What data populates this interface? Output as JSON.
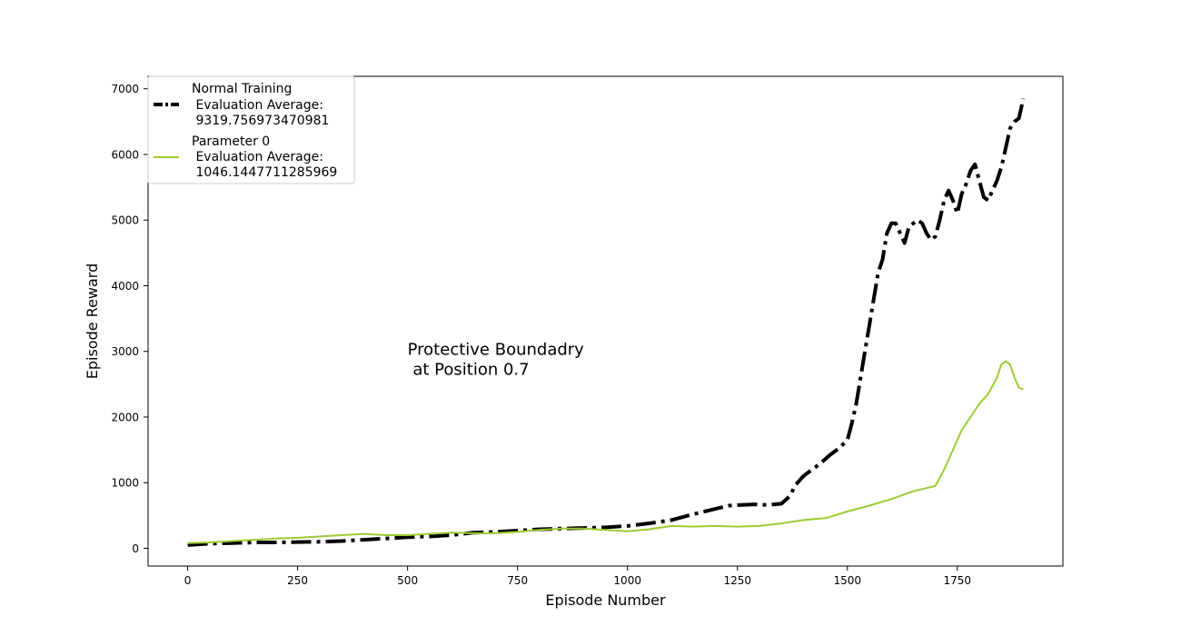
{
  "chart_data": {
    "type": "line",
    "xlabel": "Episode Number",
    "ylabel": "Episode Reward",
    "xlim": [
      -90,
      1990
    ],
    "ylim": [
      -270,
      7190
    ],
    "xticks": [
      0,
      250,
      500,
      750,
      1000,
      1250,
      1500,
      1750
    ],
    "yticks": [
      0,
      1000,
      2000,
      3000,
      4000,
      5000,
      6000,
      7000
    ],
    "grid": false,
    "legend_position": "top-left",
    "annotation": {
      "lines": [
        "Protective Boundadry",
        " at Position 0.7"
      ],
      "x": 500,
      "y": 2950
    },
    "series": [
      {
        "name": "Normal Training\n Evaluation Average:\n 9319.756973470981",
        "legend_lines": [
          "Normal Training",
          " Evaluation Average:",
          " 9319.756973470981"
        ],
        "color": "#000000",
        "style": "dashdot",
        "x": [
          0,
          50,
          100,
          150,
          200,
          250,
          300,
          350,
          400,
          450,
          500,
          550,
          600,
          650,
          700,
          750,
          800,
          850,
          900,
          950,
          1000,
          1050,
          1100,
          1150,
          1200,
          1230,
          1260,
          1290,
          1320,
          1350,
          1370,
          1380,
          1400,
          1420,
          1440,
          1460,
          1480,
          1500,
          1510,
          1520,
          1530,
          1540,
          1550,
          1560,
          1570,
          1580,
          1590,
          1600,
          1610,
          1620,
          1630,
          1640,
          1650,
          1660,
          1670,
          1680,
          1690,
          1700,
          1710,
          1720,
          1730,
          1740,
          1750,
          1760,
          1770,
          1780,
          1790,
          1800,
          1810,
          1820,
          1830,
          1840,
          1850,
          1860,
          1870,
          1880,
          1890,
          1900
        ],
        "y": [
          50,
          70,
          80,
          90,
          90,
          95,
          100,
          110,
          130,
          150,
          170,
          180,
          200,
          240,
          250,
          270,
          290,
          300,
          310,
          320,
          340,
          380,
          430,
          520,
          600,
          650,
          660,
          670,
          660,
          680,
          800,
          950,
          1100,
          1200,
          1300,
          1420,
          1520,
          1650,
          1900,
          2200,
          2600,
          3000,
          3400,
          3800,
          4200,
          4400,
          4800,
          4950,
          4950,
          4800,
          4650,
          4900,
          4950,
          5000,
          4950,
          4800,
          4700,
          4750,
          5000,
          5300,
          5450,
          5300,
          5100,
          5400,
          5550,
          5750,
          5850,
          5600,
          5350,
          5300,
          5450,
          5600,
          5800,
          6100,
          6400,
          6500,
          6550,
          6850
        ]
      },
      {
        "name": "Parameter 0\n Evaluation Average:\n 1046.1447711285969",
        "legend_lines": [
          "Parameter 0",
          " Evaluation Average:",
          " 1046.1447711285969"
        ],
        "color": "#9acd32",
        "style": "solid",
        "x": [
          0,
          50,
          100,
          150,
          200,
          250,
          300,
          350,
          400,
          450,
          500,
          550,
          600,
          650,
          700,
          750,
          800,
          850,
          900,
          950,
          1000,
          1050,
          1100,
          1150,
          1200,
          1250,
          1300,
          1350,
          1400,
          1450,
          1500,
          1550,
          1600,
          1650,
          1700,
          1720,
          1740,
          1760,
          1780,
          1800,
          1820,
          1840,
          1850,
          1860,
          1870,
          1880,
          1890,
          1900
        ],
        "y": [
          80,
          90,
          110,
          130,
          150,
          160,
          180,
          200,
          220,
          200,
          200,
          220,
          240,
          230,
          230,
          250,
          280,
          300,
          300,
          280,
          260,
          290,
          340,
          330,
          340,
          330,
          340,
          380,
          430,
          460,
          560,
          650,
          750,
          870,
          950,
          1200,
          1500,
          1800,
          2000,
          2200,
          2350,
          2600,
          2800,
          2850,
          2800,
          2600,
          2450,
          2420
        ]
      }
    ]
  }
}
